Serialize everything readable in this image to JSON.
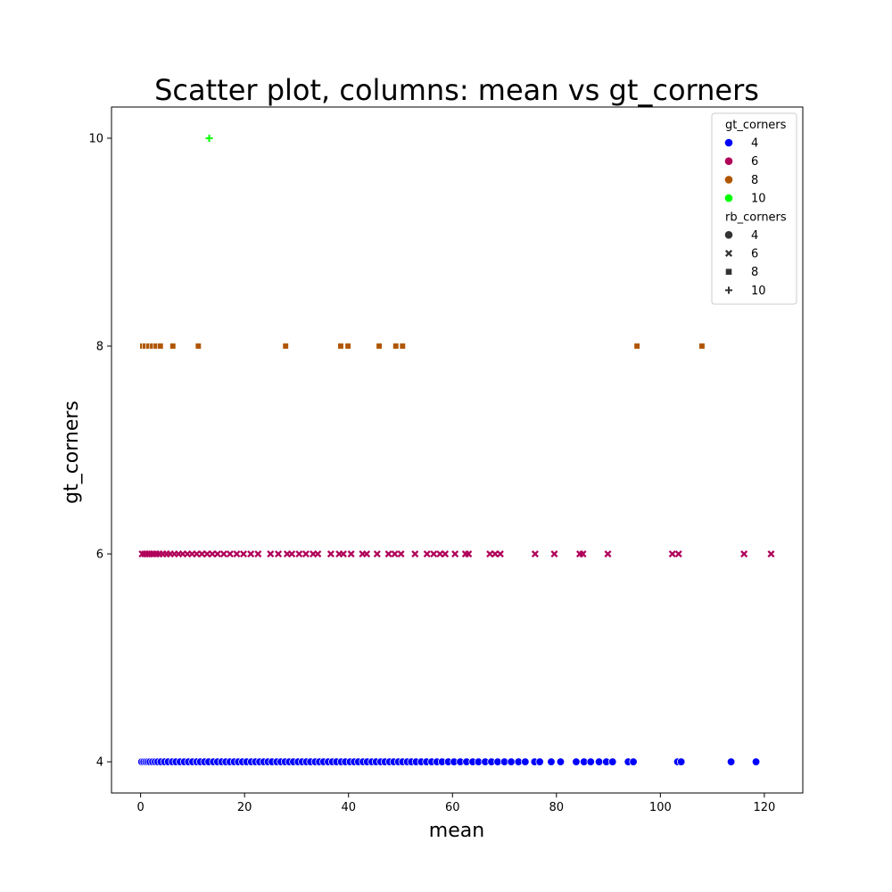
{
  "chart_data": {
    "type": "scatter",
    "title": "Scatter plot, columns: mean vs gt_corners",
    "xlabel": "mean",
    "ylabel": "gt_corners",
    "xlim": [
      -5.6,
      127.4
    ],
    "ylim": [
      3.7,
      10.3
    ],
    "xticks": [
      0,
      20,
      40,
      60,
      80,
      100,
      120
    ],
    "yticks": [
      4,
      6,
      8,
      10
    ],
    "grid": false,
    "legend": {
      "placement": "top-right",
      "hue_title": "gt_corners",
      "hue_entries": [
        {
          "label": "4",
          "color": "#0000ff"
        },
        {
          "label": "6",
          "color": "#b0005a"
        },
        {
          "label": "8",
          "color": "#b05500"
        },
        {
          "label": "10",
          "color": "#00ff00"
        }
      ],
      "style_title": "rb_corners",
      "style_entries": [
        {
          "label": "4",
          "marker": "circle"
        },
        {
          "label": "6",
          "marker": "x"
        },
        {
          "label": "8",
          "marker": "square"
        },
        {
          "label": "10",
          "marker": "plus"
        }
      ]
    },
    "series": [
      {
        "gt": 4,
        "rb": 4,
        "color": "#0000ff",
        "marker": "circle",
        "x": [
          0.2,
          0.6,
          1.0,
          1.4,
          1.8,
          2.3,
          2.8,
          3.3,
          3.9,
          4.6,
          5.3,
          6.1,
          6.8,
          7.6,
          8.4,
          9.2,
          10.0,
          10.8,
          11.5,
          12.3,
          13.1,
          14.0,
          14.8,
          15.6,
          16.4,
          17.2,
          18.0,
          18.8,
          19.6,
          20.4,
          21.3,
          22.1,
          22.9,
          23.7,
          24.5,
          25.3,
          26.2,
          27.0,
          27.8,
          28.6,
          29.4,
          30.3,
          31.1,
          31.9,
          32.7,
          33.6,
          34.4,
          35.2,
          36.1,
          36.9,
          37.7,
          38.6,
          39.4,
          40.3,
          41.1,
          41.9,
          42.8,
          43.6,
          44.5,
          45.3,
          46.2,
          47.0,
          47.9,
          48.7,
          49.6,
          50.4,
          51.3,
          52.1,
          53.0,
          54.0,
          55.0,
          56.0,
          57.0,
          58.0,
          59.2,
          60.3,
          61.5,
          62.7,
          63.9,
          65.0,
          66.3,
          67.5,
          68.7,
          70.0,
          71.3,
          72.7,
          74.0,
          75.8,
          76.8,
          79.0,
          80.8,
          83.8,
          85.3,
          86.6,
          88.2,
          89.6,
          90.8,
          93.8,
          94.8,
          103.3,
          104.0,
          113.6,
          118.4
        ]
      },
      {
        "gt": 6,
        "rb": 6,
        "color": "#b0005a",
        "marker": "x",
        "x": [
          0.3,
          0.8,
          1.3,
          1.8,
          2.4,
          3.0,
          3.6,
          4.3,
          5.0,
          5.7,
          6.5,
          7.3,
          8.1,
          9.0,
          9.9,
          10.8,
          11.8,
          12.8,
          13.8,
          14.8,
          16.0,
          17.2,
          18.5,
          19.8,
          21.2,
          22.6,
          25.0,
          26.5,
          28.2,
          29.1,
          30.5,
          31.8,
          33.2,
          34.1,
          36.6,
          38.2,
          39.0,
          40.5,
          42.7,
          43.5,
          45.5,
          47.7,
          48.9,
          50.1,
          52.8,
          55.1,
          56.4,
          57.6,
          58.6,
          60.5,
          62.5,
          63.1,
          67.2,
          68.2,
          69.2,
          75.9,
          79.6,
          84.5,
          85.1,
          89.9,
          102.3,
          103.5,
          116.1,
          121.3
        ]
      },
      {
        "gt": 8,
        "rb": 8,
        "color": "#b05500",
        "marker": "square",
        "x": [
          0.4,
          0.9,
          1.6,
          2.3,
          3.0,
          3.8,
          6.2,
          11.1,
          27.9,
          38.5,
          39.9,
          45.9,
          49.1,
          50.4,
          95.5,
          108.0
        ]
      },
      {
        "gt": 10,
        "rb": 10,
        "color": "#00ff00",
        "marker": "plus",
        "x": [
          13.2
        ]
      }
    ]
  }
}
